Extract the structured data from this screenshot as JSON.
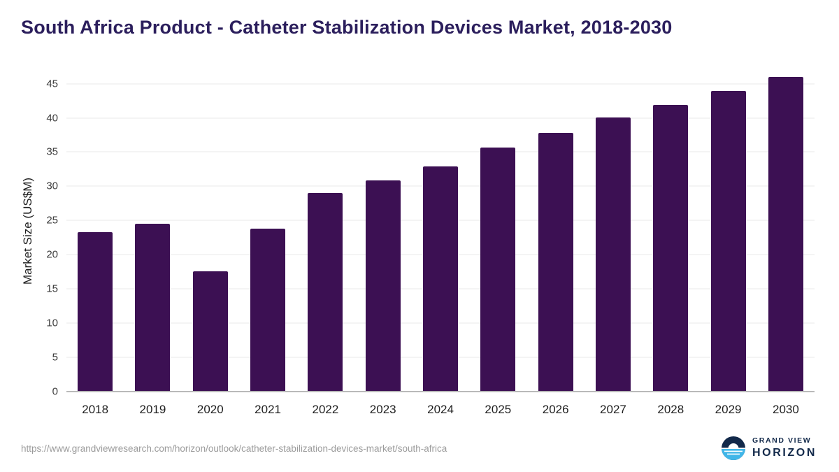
{
  "page": {
    "title": "South Africa Product - Catheter Stabilization Devices Market, 2018-2030",
    "source_url": "https://www.grandviewresearch.com/horizon/outlook/catheter-stabilization-devices-market/south-africa"
  },
  "logo": {
    "line1": "GRAND VIEW",
    "line2": "HORIZON",
    "icon": "horizon-sunset-circle-icon"
  },
  "colors": {
    "bar": "#3c1053",
    "title": "#2b1e5c",
    "gridline": "#e8e8e8",
    "baseline": "#b9b9b9",
    "axis_text": "#3d3d3d",
    "url_text": "#9b9b9b",
    "logo_navy": "#12294a",
    "logo_blue": "#41b6e8"
  },
  "chart_data": {
    "type": "bar",
    "title": "South Africa Product - Catheter Stabilization Devices Market, 2018-2030",
    "categories": [
      "2018",
      "2019",
      "2020",
      "2021",
      "2022",
      "2023",
      "2024",
      "2025",
      "2026",
      "2027",
      "2028",
      "2029",
      "2030"
    ],
    "values": [
      23.3,
      24.5,
      17.6,
      23.8,
      29.0,
      30.9,
      32.9,
      35.7,
      37.8,
      40.1,
      41.9,
      43.9,
      46.0
    ],
    "xlabel": "",
    "ylabel": "Market Size (US$M)",
    "ylim": [
      0,
      47
    ],
    "yticks": [
      0,
      5,
      10,
      15,
      20,
      25,
      30,
      35,
      40,
      45
    ],
    "grid": "horizontal",
    "legend": "none",
    "bar_color": "#3c1053"
  }
}
